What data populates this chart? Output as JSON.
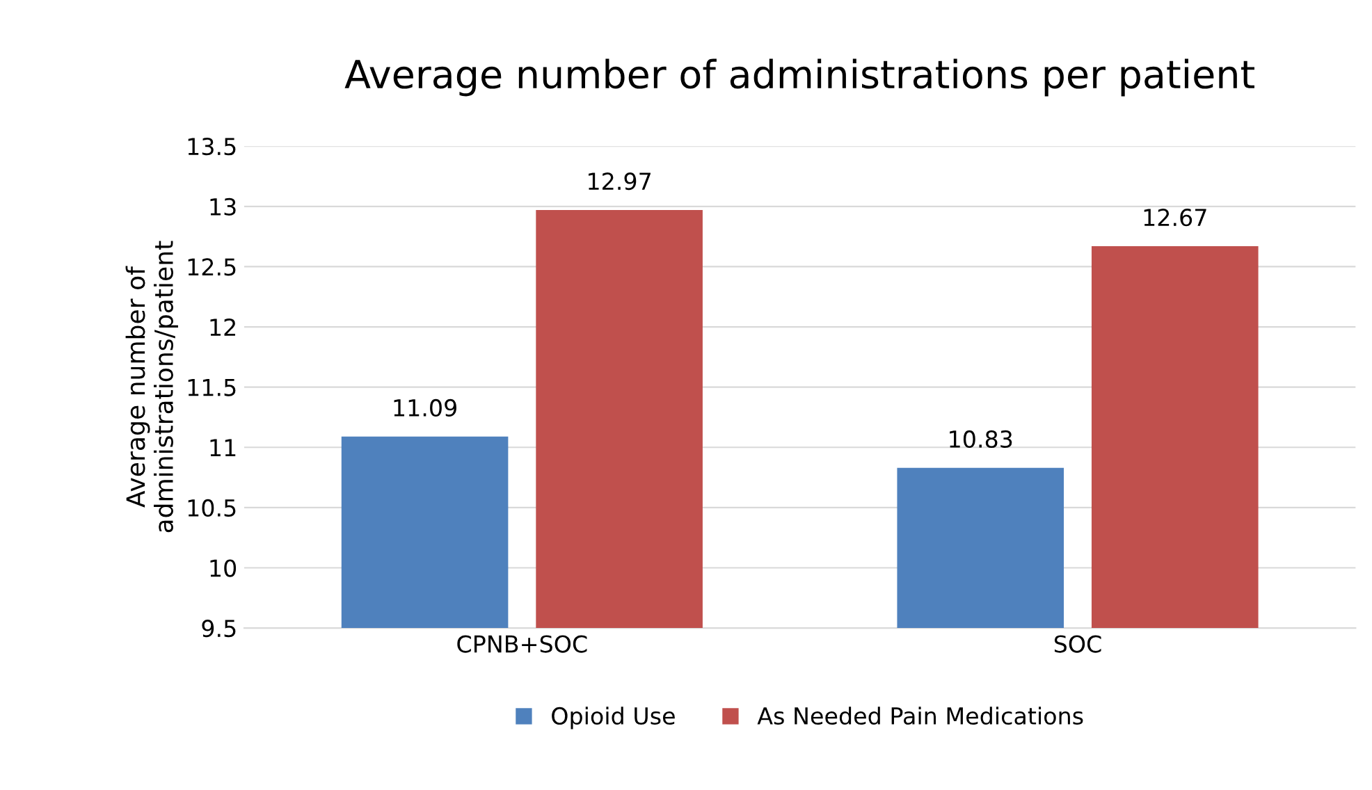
{
  "chart_data": {
    "type": "bar",
    "title": "Average number of administrations per patient",
    "ylabel": "Average number of\nadministrations/patient",
    "categories": [
      "CPNB+SOC",
      "SOC"
    ],
    "series": [
      {
        "name": "Opioid Use",
        "color": "#4f81bd",
        "values": [
          11.09,
          10.83
        ]
      },
      {
        "name": "As Needed Pain Medications",
        "color": "#c0504d",
        "values": [
          12.97,
          12.67
        ]
      }
    ],
    "ylim": [
      9.5,
      13.5
    ],
    "yticks": [
      9.5,
      10,
      10.5,
      11,
      11.5,
      12,
      12.5,
      13,
      13.5
    ],
    "grid": "y",
    "legend": "bottom",
    "data_labels": true
  }
}
